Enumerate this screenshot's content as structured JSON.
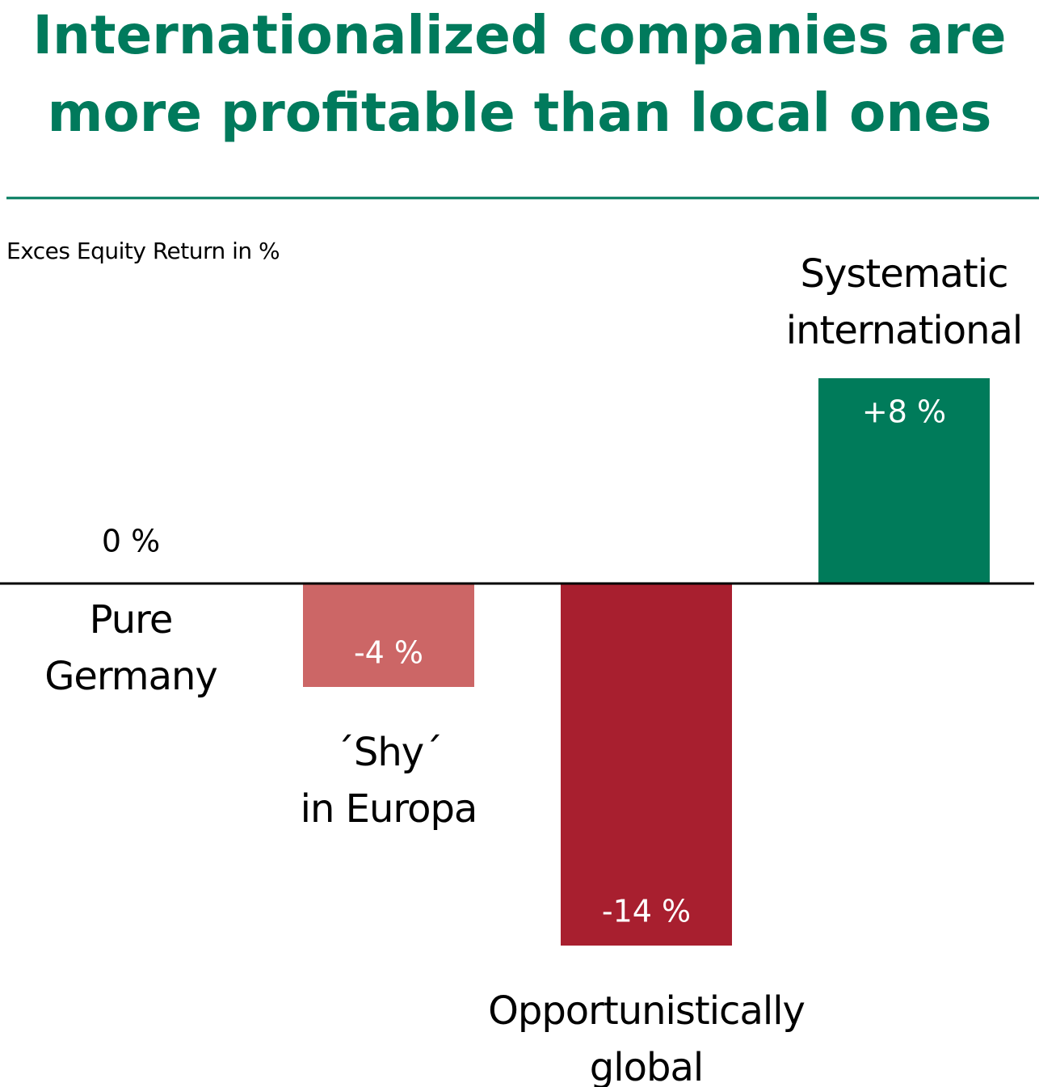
{
  "chart_data": {
    "type": "bar",
    "title": "Internationalized companies are\nmore profitable than local ones",
    "y_label": "Exces Equity Return in %",
    "categories": [
      "Pure\nGermany",
      "´Shy´\nin Europa",
      "Opportunistically\nglobal",
      "Systematic\ninternational"
    ],
    "values": [
      0,
      -4,
      -14,
      8
    ],
    "value_labels": [
      "0 %",
      "-4 %",
      "-14 %",
      "+8 %"
    ],
    "colors": [
      "#007b5a",
      "#cc6666",
      "#a81f2f",
      "#007b5a"
    ]
  }
}
